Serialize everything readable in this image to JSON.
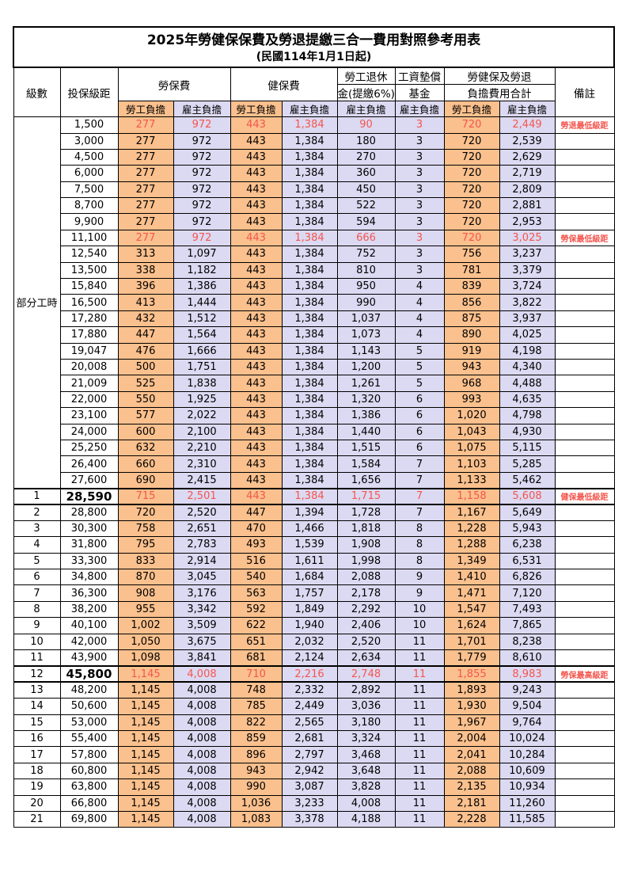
{
  "title": "2025年勞健保保費及勞退提繳三合一費用對照參考用表",
  "subtitle": "(民國114年1月1日起)",
  "colors": {
    "employee_column_bg": "#FAC08D",
    "employer_column_bg": "#DCD9F2",
    "highlight_text": "#F4564E",
    "border": "#000000"
  },
  "header": {
    "level": "級數",
    "bracket": "投保級距",
    "labor": "勞保費",
    "health": "健保費",
    "pension_line1": "勞工退休",
    "pension_line2": "金(提繳6%)",
    "fund_line1": "工資墊償",
    "fund_line2": "基金",
    "total_line1": "勞健保及勞退",
    "total_line2": "負擔費用合計",
    "remark": "備註",
    "employee": "勞工負擔",
    "employer": "雇主負擔"
  },
  "table": {
    "part_time_label": "部分工時",
    "part_time_rowspan": 23,
    "rows": [
      {
        "level": "",
        "bracket": "1,500",
        "values": [
          "277",
          "972",
          "443",
          "1,384",
          "90",
          "3",
          "720",
          "2,449"
        ],
        "remark": "勞退最低級距",
        "red": true,
        "em": false
      },
      {
        "level": "",
        "bracket": "3,000",
        "values": [
          "277",
          "972",
          "443",
          "1,384",
          "180",
          "3",
          "720",
          "2,539"
        ],
        "remark": "",
        "red": false,
        "em": false
      },
      {
        "level": "",
        "bracket": "4,500",
        "values": [
          "277",
          "972",
          "443",
          "1,384",
          "270",
          "3",
          "720",
          "2,629"
        ],
        "remark": "",
        "red": false,
        "em": false
      },
      {
        "level": "",
        "bracket": "6,000",
        "values": [
          "277",
          "972",
          "443",
          "1,384",
          "360",
          "3",
          "720",
          "2,719"
        ],
        "remark": "",
        "red": false,
        "em": false
      },
      {
        "level": "",
        "bracket": "7,500",
        "values": [
          "277",
          "972",
          "443",
          "1,384",
          "450",
          "3",
          "720",
          "2,809"
        ],
        "remark": "",
        "red": false,
        "em": false
      },
      {
        "level": "",
        "bracket": "8,700",
        "values": [
          "277",
          "972",
          "443",
          "1,384",
          "522",
          "3",
          "720",
          "2,881"
        ],
        "remark": "",
        "red": false,
        "em": false
      },
      {
        "level": "",
        "bracket": "9,900",
        "values": [
          "277",
          "972",
          "443",
          "1,384",
          "594",
          "3",
          "720",
          "2,953"
        ],
        "remark": "",
        "red": false,
        "em": false
      },
      {
        "level": "",
        "bracket": "11,100",
        "values": [
          "277",
          "972",
          "443",
          "1,384",
          "666",
          "3",
          "720",
          "3,025"
        ],
        "remark": "勞保最低級距",
        "red": true,
        "em": false
      },
      {
        "level": "",
        "bracket": "12,540",
        "values": [
          "313",
          "1,097",
          "443",
          "1,384",
          "752",
          "3",
          "756",
          "3,237"
        ],
        "remark": "",
        "red": false,
        "em": false
      },
      {
        "level": "",
        "bracket": "13,500",
        "values": [
          "338",
          "1,182",
          "443",
          "1,384",
          "810",
          "3",
          "781",
          "3,379"
        ],
        "remark": "",
        "red": false,
        "em": false
      },
      {
        "level": "",
        "bracket": "15,840",
        "values": [
          "396",
          "1,386",
          "443",
          "1,384",
          "950",
          "4",
          "839",
          "3,724"
        ],
        "remark": "",
        "red": false,
        "em": false
      },
      {
        "level": "",
        "bracket": "16,500",
        "values": [
          "413",
          "1,444",
          "443",
          "1,384",
          "990",
          "4",
          "856",
          "3,822"
        ],
        "remark": "",
        "red": false,
        "em": false
      },
      {
        "level": "",
        "bracket": "17,280",
        "values": [
          "432",
          "1,512",
          "443",
          "1,384",
          "1,037",
          "4",
          "875",
          "3,937"
        ],
        "remark": "",
        "red": false,
        "em": false
      },
      {
        "level": "",
        "bracket": "17,880",
        "values": [
          "447",
          "1,564",
          "443",
          "1,384",
          "1,073",
          "4",
          "890",
          "4,025"
        ],
        "remark": "",
        "red": false,
        "em": false
      },
      {
        "level": "",
        "bracket": "19,047",
        "values": [
          "476",
          "1,666",
          "443",
          "1,384",
          "1,143",
          "5",
          "919",
          "4,198"
        ],
        "remark": "",
        "red": false,
        "em": false
      },
      {
        "level": "",
        "bracket": "20,008",
        "values": [
          "500",
          "1,751",
          "443",
          "1,384",
          "1,200",
          "5",
          "943",
          "4,340"
        ],
        "remark": "",
        "red": false,
        "em": false
      },
      {
        "level": "",
        "bracket": "21,009",
        "values": [
          "525",
          "1,838",
          "443",
          "1,384",
          "1,261",
          "5",
          "968",
          "4,488"
        ],
        "remark": "",
        "red": false,
        "em": false
      },
      {
        "level": "",
        "bracket": "22,000",
        "values": [
          "550",
          "1,925",
          "443",
          "1,384",
          "1,320",
          "6",
          "993",
          "4,635"
        ],
        "remark": "",
        "red": false,
        "em": false
      },
      {
        "level": "",
        "bracket": "23,100",
        "values": [
          "577",
          "2,022",
          "443",
          "1,384",
          "1,386",
          "6",
          "1,020",
          "4,798"
        ],
        "remark": "",
        "red": false,
        "em": false
      },
      {
        "level": "",
        "bracket": "24,000",
        "values": [
          "600",
          "2,100",
          "443",
          "1,384",
          "1,440",
          "6",
          "1,043",
          "4,930"
        ],
        "remark": "",
        "red": false,
        "em": false
      },
      {
        "level": "",
        "bracket": "25,250",
        "values": [
          "632",
          "2,210",
          "443",
          "1,384",
          "1,515",
          "6",
          "1,075",
          "5,115"
        ],
        "remark": "",
        "red": false,
        "em": false
      },
      {
        "level": "",
        "bracket": "26,400",
        "values": [
          "660",
          "2,310",
          "443",
          "1,384",
          "1,584",
          "7",
          "1,103",
          "5,285"
        ],
        "remark": "",
        "red": false,
        "em": false
      },
      {
        "level": "",
        "bracket": "27,600",
        "values": [
          "690",
          "2,415",
          "443",
          "1,384",
          "1,656",
          "7",
          "1,133",
          "5,462"
        ],
        "remark": "",
        "red": false,
        "em": false
      },
      {
        "level": "1",
        "bracket": "28,590",
        "values": [
          "715",
          "2,501",
          "443",
          "1,384",
          "1,715",
          "7",
          "1,158",
          "5,608"
        ],
        "remark": "健保最低級距",
        "red": true,
        "em": true
      },
      {
        "level": "2",
        "bracket": "28,800",
        "values": [
          "720",
          "2,520",
          "447",
          "1,394",
          "1,728",
          "7",
          "1,167",
          "5,649"
        ],
        "remark": "",
        "red": false,
        "em": false
      },
      {
        "level": "3",
        "bracket": "30,300",
        "values": [
          "758",
          "2,651",
          "470",
          "1,466",
          "1,818",
          "8",
          "1,228",
          "5,943"
        ],
        "remark": "",
        "red": false,
        "em": false
      },
      {
        "level": "4",
        "bracket": "31,800",
        "values": [
          "795",
          "2,783",
          "493",
          "1,539",
          "1,908",
          "8",
          "1,288",
          "6,238"
        ],
        "remark": "",
        "red": false,
        "em": false
      },
      {
        "level": "5",
        "bracket": "33,300",
        "values": [
          "833",
          "2,914",
          "516",
          "1,611",
          "1,998",
          "8",
          "1,349",
          "6,531"
        ],
        "remark": "",
        "red": false,
        "em": false
      },
      {
        "level": "6",
        "bracket": "34,800",
        "values": [
          "870",
          "3,045",
          "540",
          "1,684",
          "2,088",
          "9",
          "1,410",
          "6,826"
        ],
        "remark": "",
        "red": false,
        "em": false
      },
      {
        "level": "7",
        "bracket": "36,300",
        "values": [
          "908",
          "3,176",
          "563",
          "1,757",
          "2,178",
          "9",
          "1,471",
          "7,120"
        ],
        "remark": "",
        "red": false,
        "em": false
      },
      {
        "level": "8",
        "bracket": "38,200",
        "values": [
          "955",
          "3,342",
          "592",
          "1,849",
          "2,292",
          "10",
          "1,547",
          "7,493"
        ],
        "remark": "",
        "red": false,
        "em": false
      },
      {
        "level": "9",
        "bracket": "40,100",
        "values": [
          "1,002",
          "3,509",
          "622",
          "1,940",
          "2,406",
          "10",
          "1,624",
          "7,865"
        ],
        "remark": "",
        "red": false,
        "em": false
      },
      {
        "level": "10",
        "bracket": "42,000",
        "values": [
          "1,050",
          "3,675",
          "651",
          "2,032",
          "2,520",
          "11",
          "1,701",
          "8,238"
        ],
        "remark": "",
        "red": false,
        "em": false
      },
      {
        "level": "11",
        "bracket": "43,900",
        "values": [
          "1,098",
          "3,841",
          "681",
          "2,124",
          "2,634",
          "11",
          "1,779",
          "8,610"
        ],
        "remark": "",
        "red": false,
        "em": false
      },
      {
        "level": "12",
        "bracket": "45,800",
        "values": [
          "1,145",
          "4,008",
          "710",
          "2,216",
          "2,748",
          "11",
          "1,855",
          "8,983"
        ],
        "remark": "勞保最高級距",
        "red": true,
        "em": true
      },
      {
        "level": "13",
        "bracket": "48,200",
        "values": [
          "1,145",
          "4,008",
          "748",
          "2,332",
          "2,892",
          "11",
          "1,893",
          "9,243"
        ],
        "remark": "",
        "red": false,
        "em": false
      },
      {
        "level": "14",
        "bracket": "50,600",
        "values": [
          "1,145",
          "4,008",
          "785",
          "2,449",
          "3,036",
          "11",
          "1,930",
          "9,504"
        ],
        "remark": "",
        "red": false,
        "em": false
      },
      {
        "level": "15",
        "bracket": "53,000",
        "values": [
          "1,145",
          "4,008",
          "822",
          "2,565",
          "3,180",
          "11",
          "1,967",
          "9,764"
        ],
        "remark": "",
        "red": false,
        "em": false
      },
      {
        "level": "16",
        "bracket": "55,400",
        "values": [
          "1,145",
          "4,008",
          "859",
          "2,681",
          "3,324",
          "11",
          "2,004",
          "10,024"
        ],
        "remark": "",
        "red": false,
        "em": false
      },
      {
        "level": "17",
        "bracket": "57,800",
        "values": [
          "1,145",
          "4,008",
          "896",
          "2,797",
          "3,468",
          "11",
          "2,041",
          "10,284"
        ],
        "remark": "",
        "red": false,
        "em": false
      },
      {
        "level": "18",
        "bracket": "60,800",
        "values": [
          "1,145",
          "4,008",
          "943",
          "2,942",
          "3,648",
          "11",
          "2,088",
          "10,609"
        ],
        "remark": "",
        "red": false,
        "em": false
      },
      {
        "level": "19",
        "bracket": "63,800",
        "values": [
          "1,145",
          "4,008",
          "990",
          "3,087",
          "3,828",
          "11",
          "2,135",
          "10,934"
        ],
        "remark": "",
        "red": false,
        "em": false
      },
      {
        "level": "20",
        "bracket": "66,800",
        "values": [
          "1,145",
          "4,008",
          "1,036",
          "3,233",
          "4,008",
          "11",
          "2,181",
          "11,260"
        ],
        "remark": "",
        "red": false,
        "em": false
      },
      {
        "level": "21",
        "bracket": "69,800",
        "values": [
          "1,145",
          "4,008",
          "1,083",
          "3,378",
          "4,188",
          "11",
          "2,228",
          "11,585"
        ],
        "remark": "",
        "red": false,
        "em": false
      }
    ]
  }
}
